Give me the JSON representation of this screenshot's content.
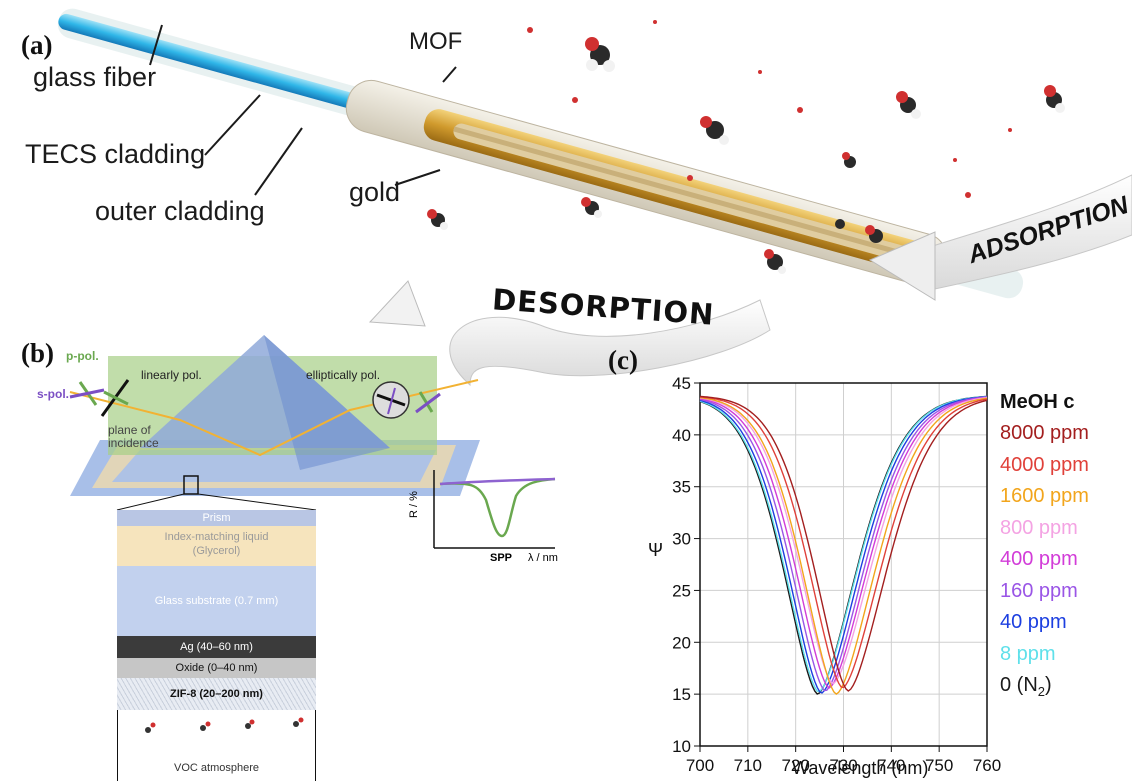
{
  "panel_a": {
    "label": "(a)",
    "callouts": {
      "mof": "MOF",
      "glass_fiber": "glass fiber",
      "tecs": "TECS cladding",
      "outer": "outer cladding",
      "gold": "gold"
    },
    "arrows": {
      "desorption": "DESORPTION",
      "adsorption": "ADSORPTION"
    }
  },
  "panel_b": {
    "label": "(b)",
    "p_pol": "p-pol.",
    "s_pol": "s-pol.",
    "linearly": "linearly pol.",
    "elliptically": "elliptically pol.",
    "plane_line1": "plane of",
    "plane_line2": "incidence",
    "inset": {
      "ylabel": "R / %",
      "spp": "SPP",
      "xlabel": "λ / nm"
    },
    "layers": {
      "prism": "Prism",
      "index1": "Index-matching liquid",
      "index2": "(Glycerol)",
      "glass": "Glass substrate (0.7 mm)",
      "ag": "Ag (40–60 nm)",
      "oxide": "Oxide (0–40 nm)",
      "zif": "ZIF-8 (20–200 nm)",
      "voc": "VOC atmosphere"
    }
  },
  "panel_c": {
    "label": "(c)"
  },
  "chart_data": {
    "type": "line",
    "xlabel": "Wavelength (nm)",
    "ylabel": "Ψ",
    "xlim": [
      700,
      760
    ],
    "ylim": [
      10,
      45
    ],
    "xticks": [
      700,
      710,
      720,
      730,
      740,
      750,
      760
    ],
    "yticks": [
      10,
      15,
      20,
      25,
      30,
      35,
      40,
      45
    ],
    "grid": true,
    "legend_title": "MeOH c",
    "legend_position": "right",
    "series": [
      {
        "name": "8000 ppm",
        "color": "#a31f1f",
        "min_x": 731.0,
        "min_y": 15.3
      },
      {
        "name": "4000 ppm",
        "color": "#e0413a",
        "min_x": 729.8,
        "min_y": 15.6
      },
      {
        "name": "1600 ppm",
        "color": "#f2a51c",
        "min_x": 728.5,
        "min_y": 15.0
      },
      {
        "name": "800 ppm",
        "color": "#f4a3e3",
        "min_x": 727.8,
        "min_y": 16.0
      },
      {
        "name": "400 ppm",
        "color": "#d23cd8",
        "min_x": 727.0,
        "min_y": 15.6
      },
      {
        "name": "160 ppm",
        "color": "#9a55e6",
        "min_x": 726.2,
        "min_y": 15.3
      },
      {
        "name": "40 ppm",
        "color": "#1c3fe0",
        "min_x": 725.4,
        "min_y": 15.1
      },
      {
        "name": "8 ppm",
        "color": "#5fe0ea",
        "min_x": 724.8,
        "min_y": 15.2
      },
      {
        "name": "0 (N",
        "sub": "2",
        "close": ")",
        "color": "#1a1a1a",
        "min_x": 724.6,
        "min_y": 15.0
      }
    ]
  }
}
